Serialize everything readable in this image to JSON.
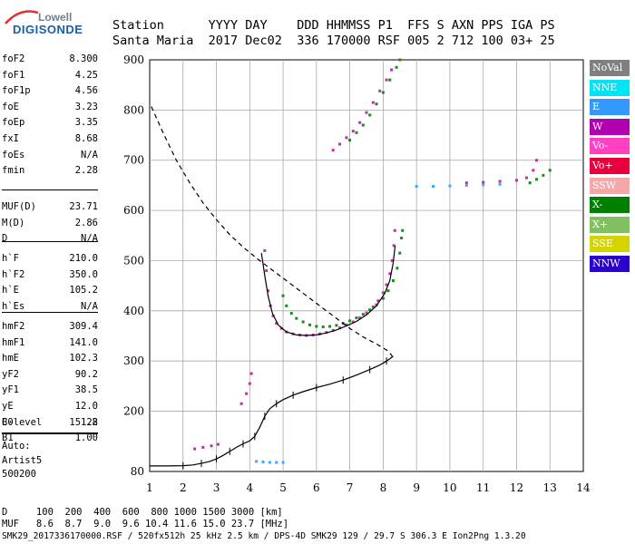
{
  "logo": {
    "line1": "Lowell",
    "line2": "DIGISONDE"
  },
  "header": {
    "line1": "Station      YYYY DAY    DDD HHMMSS P1  FFS S AXN PPS IGA PS",
    "line2": "Santa Maria  2017 Dec02  336 170000 RSF 005 2 712 100 03+ 25"
  },
  "params": {
    "group1": [
      {
        "label": "foF2",
        "value": "8.300"
      },
      {
        "label": "foF1",
        "value": "4.25"
      },
      {
        "label": "foF1p",
        "value": "4.56"
      },
      {
        "label": "foE",
        "value": "3.23"
      },
      {
        "label": "foEp",
        "value": "3.35"
      },
      {
        "label": "fxI",
        "value": "8.68"
      },
      {
        "label": "foEs",
        "value": "N/A"
      },
      {
        "label": "fmin",
        "value": "2.28"
      }
    ],
    "group2": [
      {
        "label": "MUF(D)",
        "value": "23.71"
      },
      {
        "label": "M(D)",
        "value": "2.86"
      },
      {
        "label": "D",
        "value": "N/A"
      }
    ],
    "group3": [
      {
        "label": "h`F",
        "value": "210.0"
      },
      {
        "label": "h`F2",
        "value": "350.0"
      },
      {
        "label": "h`E",
        "value": "105.2"
      },
      {
        "label": "h`Es",
        "value": "N/A"
      }
    ],
    "group4": [
      {
        "label": "hmF2",
        "value": "309.4"
      },
      {
        "label": "hmF1",
        "value": "141.0"
      },
      {
        "label": "hmE",
        "value": "102.3"
      },
      {
        "label": "yF2",
        "value": "90.2"
      },
      {
        "label": "yF1",
        "value": "38.5"
      },
      {
        "label": "yE",
        "value": "12.0"
      },
      {
        "label": "B0",
        "value": "151.8"
      },
      {
        "label": "B1",
        "value": "1.00"
      }
    ],
    "group5": [
      {
        "label": "C-level",
        "value": "22"
      }
    ],
    "auto_lines": [
      "Auto:",
      "Artist5",
      "500200"
    ]
  },
  "footer": {
    "d_line": "D     100  200  400  600  800 1000 1500 3000 [km]",
    "muf_line": "MUF   8.6  8.7  9.0  9.6 10.4 11.6 15.0 23.7 [MHz]",
    "info_line": "SMK29_2017336170000.RSF / 520fx512h 25 kHz 2.5 km / DPS-4D SMK29 129 / 29.7 S 306.3 E Ion2Png 1.3.20"
  },
  "legend": [
    {
      "label": "NoVal",
      "color": "#808080"
    },
    {
      "label": "NNE",
      "color": "#00e5f5"
    },
    {
      "label": "E",
      "color": "#3399ff"
    },
    {
      "label": "W",
      "color": "#b000b0"
    },
    {
      "label": "Vo-",
      "color": "#ff40c0"
    },
    {
      "label": "Vo+",
      "color": "#e8003c"
    },
    {
      "label": "SSW",
      "color": "#f4a8a8"
    },
    {
      "label": "X-",
      "color": "#008000"
    },
    {
      "label": "X+",
      "color": "#80c060"
    },
    {
      "label": "SSE",
      "color": "#d4d400"
    },
    {
      "label": "NNW",
      "color": "#2a00d0"
    }
  ],
  "chart_data": {
    "type": "scatter",
    "xlabel": "",
    "ylabel": "",
    "xlim": [
      1,
      14
    ],
    "ylim": [
      80,
      900
    ],
    "x_ticks": [
      "1",
      "2",
      "3",
      "4",
      "5",
      "6",
      "7",
      "8",
      "9",
      "10",
      "11",
      "12",
      "13",
      "14"
    ],
    "y_ticks": [
      "80",
      "200",
      "300",
      "400",
      "500",
      "600",
      "700",
      "800",
      "900"
    ],
    "grid": true,
    "series": [
      {
        "name": "Vo-",
        "kind": "dots",
        "color": "#c0309a",
        "points": [
          [
            4.45,
            520
          ],
          [
            4.5,
            480
          ],
          [
            4.55,
            440
          ],
          [
            4.62,
            410
          ],
          [
            4.7,
            390
          ],
          [
            4.8,
            375
          ],
          [
            4.95,
            365
          ],
          [
            5.1,
            358
          ],
          [
            5.3,
            354
          ],
          [
            5.5,
            352
          ],
          [
            5.7,
            351
          ],
          [
            5.9,
            352
          ],
          [
            6.1,
            354
          ],
          [
            6.3,
            357
          ],
          [
            6.5,
            361
          ],
          [
            6.7,
            366
          ],
          [
            6.9,
            372
          ],
          [
            7.1,
            378
          ],
          [
            7.3,
            386
          ],
          [
            7.5,
            396
          ],
          [
            7.7,
            408
          ],
          [
            7.85,
            420
          ],
          [
            8.0,
            436
          ],
          [
            8.1,
            452
          ],
          [
            8.2,
            474
          ],
          [
            8.27,
            500
          ],
          [
            8.32,
            530
          ],
          [
            8.35,
            560
          ],
          [
            6.5,
            720
          ],
          [
            6.7,
            732
          ],
          [
            6.9,
            745
          ],
          [
            7.1,
            758
          ],
          [
            7.3,
            775
          ],
          [
            7.5,
            795
          ],
          [
            7.7,
            815
          ],
          [
            7.9,
            838
          ],
          [
            8.1,
            860
          ],
          [
            8.25,
            880
          ],
          [
            10.5,
            655
          ],
          [
            11,
            656
          ],
          [
            11.5,
            658
          ],
          [
            12,
            660
          ],
          [
            12.3,
            665
          ],
          [
            12.5,
            680
          ],
          [
            12.6,
            700
          ],
          [
            2.35,
            125
          ],
          [
            2.6,
            128
          ],
          [
            2.85,
            131
          ],
          [
            3.05,
            134
          ],
          [
            3.75,
            215
          ],
          [
            3.9,
            235
          ],
          [
            4.0,
            255
          ],
          [
            4.05,
            275
          ]
        ]
      },
      {
        "name": "X-",
        "kind": "dots",
        "color": "#1a8a1a",
        "points": [
          [
            5.0,
            430
          ],
          [
            5.1,
            410
          ],
          [
            5.25,
            395
          ],
          [
            5.4,
            385
          ],
          [
            5.6,
            378
          ],
          [
            5.8,
            372
          ],
          [
            6.0,
            369
          ],
          [
            6.2,
            368
          ],
          [
            6.4,
            369
          ],
          [
            6.6,
            371
          ],
          [
            6.8,
            375
          ],
          [
            7.0,
            380
          ],
          [
            7.2,
            386
          ],
          [
            7.4,
            393
          ],
          [
            7.6,
            402
          ],
          [
            7.8,
            412
          ],
          [
            8.0,
            425
          ],
          [
            8.15,
            440
          ],
          [
            8.3,
            460
          ],
          [
            8.42,
            485
          ],
          [
            8.5,
            515
          ],
          [
            8.55,
            545
          ],
          [
            8.58,
            560
          ],
          [
            7.0,
            740
          ],
          [
            7.2,
            755
          ],
          [
            7.4,
            770
          ],
          [
            7.6,
            790
          ],
          [
            7.8,
            812
          ],
          [
            8.0,
            835
          ],
          [
            8.2,
            860
          ],
          [
            8.4,
            885
          ],
          [
            8.5,
            900
          ],
          [
            12.4,
            655
          ],
          [
            12.6,
            662
          ],
          [
            12.8,
            670
          ],
          [
            13.0,
            680
          ]
        ]
      },
      {
        "name": "E",
        "kind": "dots",
        "color": "#40a8ff",
        "points": [
          [
            9.0,
            648
          ],
          [
            9.5,
            648
          ],
          [
            10.0,
            649
          ],
          [
            10.5,
            650
          ],
          [
            11.0,
            651
          ],
          [
            11.5,
            652
          ],
          [
            4.2,
            100
          ],
          [
            4.4,
            99
          ],
          [
            4.6,
            98
          ],
          [
            4.8,
            98
          ],
          [
            5.0,
            98
          ]
        ]
      },
      {
        "name": "trace",
        "kind": "line",
        "color": "#000000",
        "points": [
          [
            4.35,
            515
          ],
          [
            4.45,
            470
          ],
          [
            4.55,
            430
          ],
          [
            4.68,
            395
          ],
          [
            4.85,
            372
          ],
          [
            5.1,
            358
          ],
          [
            5.4,
            352
          ],
          [
            5.7,
            351
          ],
          [
            6.0,
            352
          ],
          [
            6.3,
            356
          ],
          [
            6.6,
            362
          ],
          [
            6.9,
            370
          ],
          [
            7.2,
            379
          ],
          [
            7.5,
            392
          ],
          [
            7.8,
            410
          ],
          [
            8.05,
            435
          ],
          [
            8.2,
            460
          ],
          [
            8.3,
            495
          ],
          [
            8.36,
            530
          ]
        ]
      },
      {
        "name": "profile",
        "kind": "line",
        "color": "#000000",
        "points": [
          [
            1.0,
            91
          ],
          [
            1.5,
            91
          ],
          [
            2.0,
            91.5
          ],
          [
            2.3,
            93
          ],
          [
            2.55,
            96
          ],
          [
            2.8,
            100
          ],
          [
            3.0,
            105
          ],
          [
            3.2,
            112
          ],
          [
            3.4,
            120
          ],
          [
            3.6,
            128
          ],
          [
            3.8,
            135
          ],
          [
            4.0,
            141
          ],
          [
            4.15,
            150
          ],
          [
            4.3,
            168
          ],
          [
            4.45,
            190
          ],
          [
            4.6,
            205
          ],
          [
            4.8,
            215
          ],
          [
            5.0,
            223
          ],
          [
            5.3,
            232
          ],
          [
            5.6,
            239
          ],
          [
            6.0,
            247
          ],
          [
            6.4,
            254
          ],
          [
            6.8,
            262
          ],
          [
            7.2,
            272
          ],
          [
            7.6,
            283
          ],
          [
            7.9,
            292
          ],
          [
            8.1,
            300
          ],
          [
            8.3,
            309.4
          ]
        ]
      },
      {
        "name": "model",
        "kind": "dashed",
        "color": "#000000",
        "points": [
          [
            1.05,
            807
          ],
          [
            1.4,
            755
          ],
          [
            1.8,
            700
          ],
          [
            2.2,
            655
          ],
          [
            2.6,
            615
          ],
          [
            3.0,
            582
          ],
          [
            3.4,
            552
          ],
          [
            3.8,
            527
          ],
          [
            4.2,
            505
          ],
          [
            4.6,
            485
          ],
          [
            5.0,
            465
          ],
          [
            5.4,
            445
          ],
          [
            5.8,
            425
          ],
          [
            6.2,
            405
          ],
          [
            6.6,
            385
          ],
          [
            7.0,
            365
          ],
          [
            7.4,
            348
          ],
          [
            7.8,
            334
          ],
          [
            8.1,
            322
          ],
          [
            8.25,
            312
          ],
          [
            8.3,
            305
          ]
        ]
      }
    ]
  }
}
